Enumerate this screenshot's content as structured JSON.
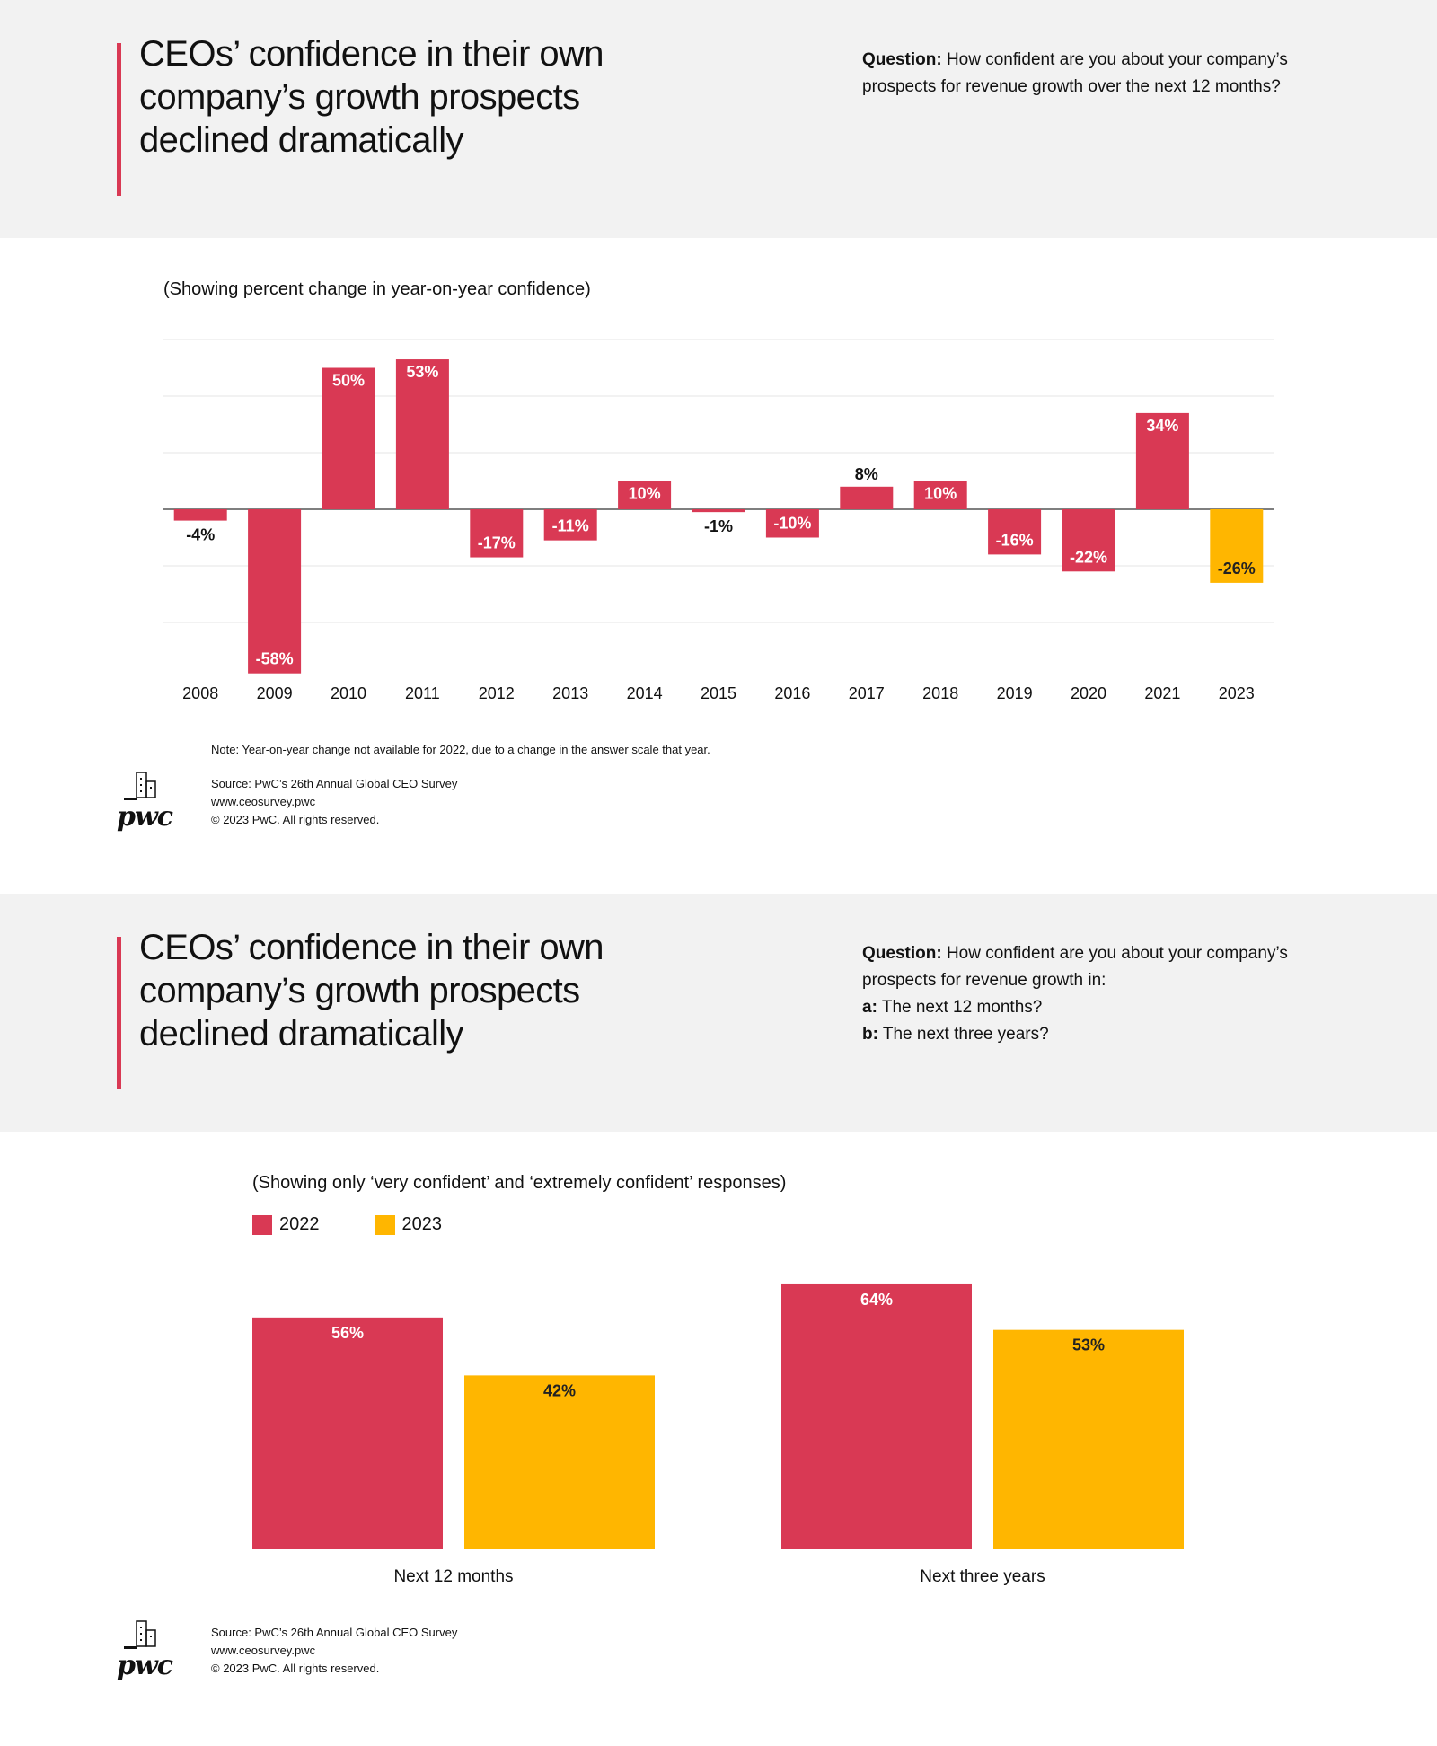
{
  "panel1": {
    "headline": [
      "CEOs’ confidence in their own",
      "company’s growth prospects",
      "declined dramatically"
    ],
    "question": {
      "label": "Question:",
      "lines": [
        "How confident are you about your company’s",
        "prospects for revenue growth over the next 12 months?"
      ]
    },
    "subtitle": "(Showing percent change in year-on-year confidence)",
    "note": "Note: Year-on-year change not available for 2022, due to a change in the answer scale that year.",
    "source": [
      "Source: PwC’s 26th Annual Global CEO Survey",
      "www.ceosurvey.pwc",
      "© 2023 PwC. All rights reserved."
    ]
  },
  "panel2": {
    "headline": [
      "CEOs’ confidence in their own",
      "company’s growth prospects",
      "declined dramatically"
    ],
    "question": {
      "label": "Question:",
      "lines": [
        "How confident are you about your company’s",
        "prospects for revenue growth in:"
      ],
      "items": [
        {
          "key": "a:",
          "text": "The next 12 months?"
        },
        {
          "key": "b:",
          "text": "The next three years?"
        }
      ]
    },
    "subtitle": "(Showing only ‘very confident’ and ‘extremely confident’ responses)",
    "source": [
      "Source: PwC’s 26th Annual Global CEO Survey",
      "www.ceosurvey.pwc",
      "© 2023 PwC. All rights reserved."
    ]
  },
  "logo": {
    "icon": "pwc-logo",
    "wordmark": "pwc"
  },
  "colors": {
    "red": "#d93954",
    "yellow": "#ffb600",
    "band": "#f2f2f2",
    "grid": "#e6e6e6"
  },
  "chart_data": [
    {
      "type": "bar",
      "title": "",
      "xlabel": "",
      "ylabel": "",
      "categories": [
        "2008",
        "2009",
        "2010",
        "2011",
        "2012",
        "2013",
        "2014",
        "2015",
        "2016",
        "2017",
        "2018",
        "2019",
        "2020",
        "2021",
        "2023"
      ],
      "values": [
        -4,
        -58,
        50,
        53,
        -17,
        -11,
        10,
        -1,
        -10,
        8,
        10,
        -16,
        -22,
        34,
        -26
      ],
      "labels": [
        "-4%",
        "-58%",
        "50%",
        "53%",
        "-17%",
        "-11%",
        "10%",
        "-1%",
        "-10%",
        "8%",
        "10%",
        "-16%",
        "-22%",
        "34%",
        "-26%"
      ],
      "highlight": {
        "category": "2023",
        "color": "#ffb600"
      },
      "bar_color": "#d93954",
      "ylim": [
        -60,
        60
      ],
      "grid": true,
      "legend": "none"
    },
    {
      "type": "bar",
      "title": "",
      "categories": [
        "Next 12 months",
        "Next three years"
      ],
      "series": [
        {
          "name": "2022",
          "values": [
            56,
            64
          ],
          "labels": [
            "56%",
            "64%"
          ],
          "color": "#d93954"
        },
        {
          "name": "2023",
          "values": [
            42,
            53
          ],
          "labels": [
            "42%",
            "53%"
          ],
          "color": "#ffb600"
        }
      ],
      "ylim": [
        0,
        64
      ],
      "grid": false,
      "legend": "top-left"
    }
  ]
}
